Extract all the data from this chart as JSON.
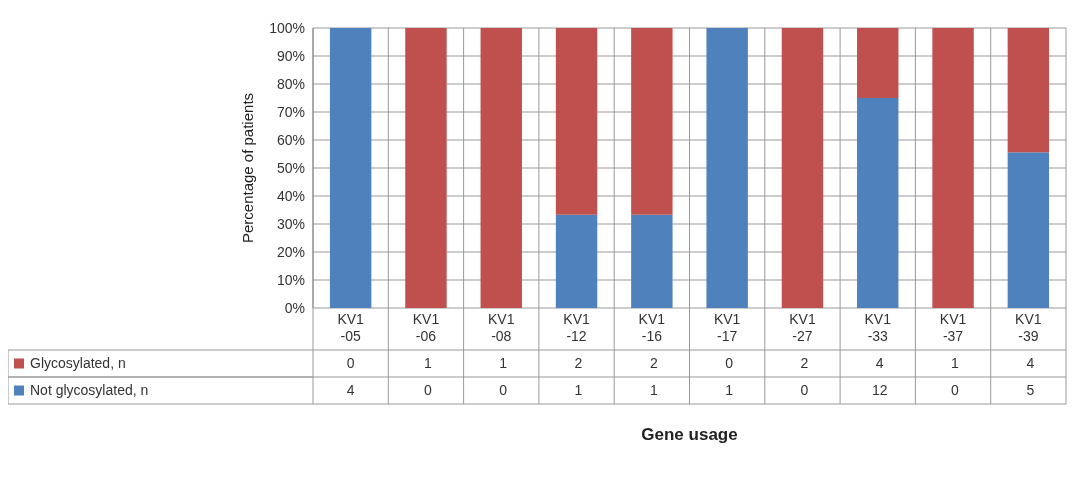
{
  "chart_data": {
    "type": "bar",
    "stacked": true,
    "xlabel": "Gene usage",
    "ylabel": "Percentage of patients",
    "categories": [
      "KV1-05",
      "KV1-06",
      "KV1-08",
      "KV1-12",
      "KV1-16",
      "KV1-17",
      "KV1-27",
      "KV1-33",
      "KV1-37",
      "KV1-39"
    ],
    "series": [
      {
        "name": "Not glycosylated, n",
        "color": "#4f81bd",
        "values": [
          100,
          0,
          0,
          33.3,
          33.3,
          100,
          0,
          75,
          0,
          55.6
        ]
      },
      {
        "name": "Glycosylated, n",
        "color": "#c0504d",
        "values": [
          0,
          100,
          100,
          66.7,
          66.7,
          0,
          100,
          25,
          100,
          44.4
        ]
      }
    ],
    "annotations": [
      "0 1 1 2 2 0 2 4 1 4",
      "4 0 0 1 1 1 0 12 0 5"
    ],
    "ylim": [
      0,
      100
    ],
    "yticks": [
      {
        "value": 0,
        "label": "0%"
      },
      {
        "value": 10,
        "label": "10%"
      },
      {
        "value": 20,
        "label": "20%"
      },
      {
        "value": 30,
        "label": "30%"
      },
      {
        "value": 40,
        "label": "40%"
      },
      {
        "value": 50,
        "label": "50%"
      },
      {
        "value": 60,
        "label": "60%"
      },
      {
        "value": 70,
        "label": "70%"
      },
      {
        "value": 80,
        "label": "80%"
      },
      {
        "value": 90,
        "label": "90%"
      },
      {
        "value": 100,
        "label": "100%"
      }
    ],
    "grid": "y",
    "legend": "bottom"
  }
}
